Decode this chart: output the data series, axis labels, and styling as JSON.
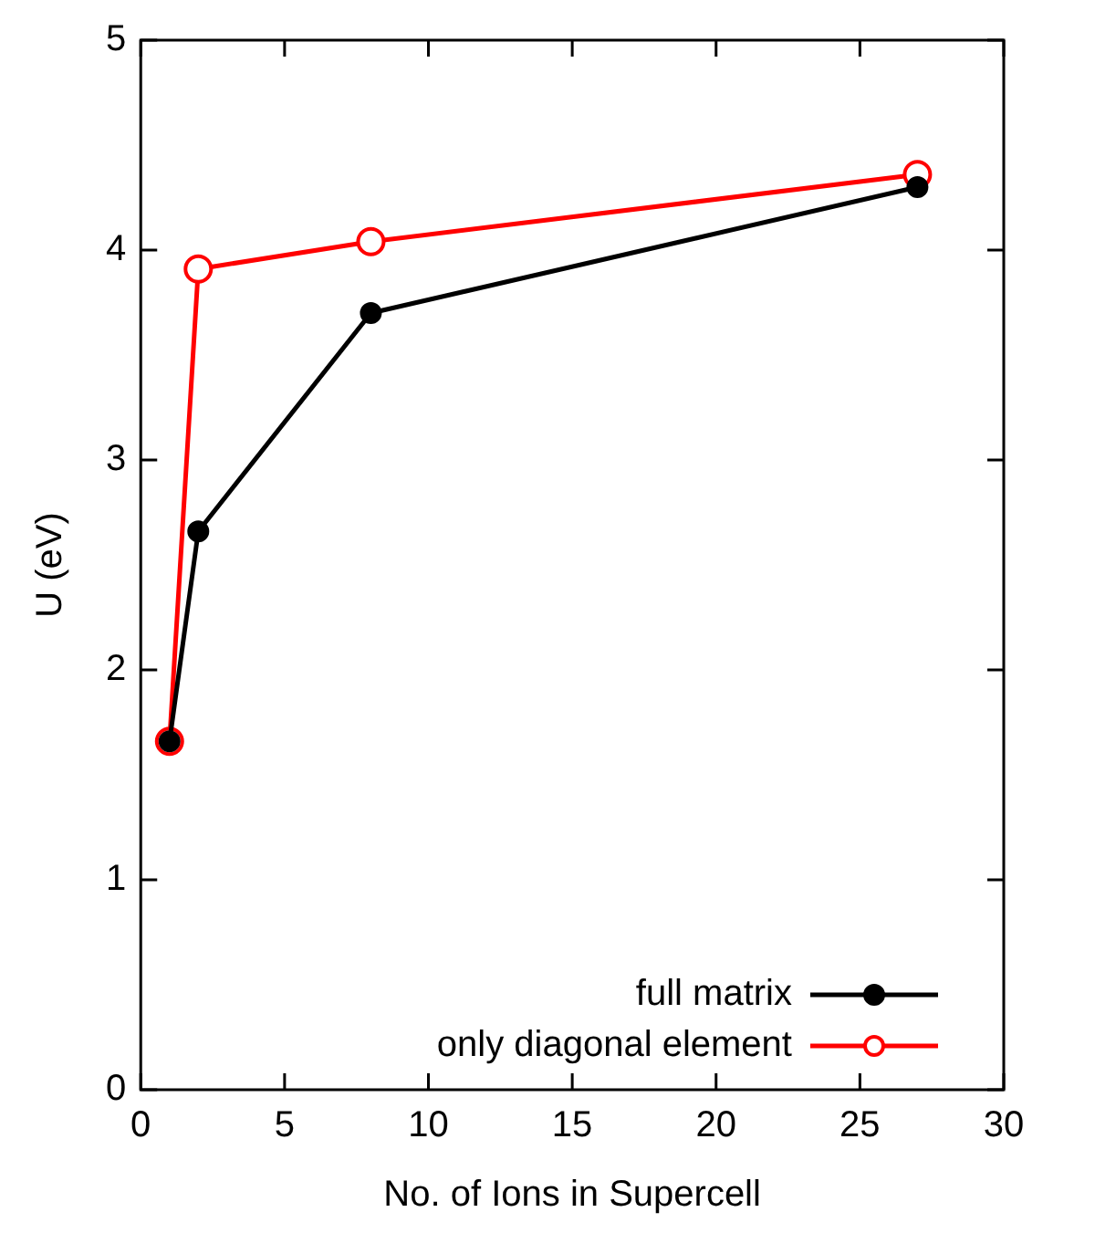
{
  "chart_data": {
    "type": "line",
    "xlabel": "No. of Ions in Supercell",
    "ylabel": "U (eV)",
    "xlim": [
      0,
      30
    ],
    "xticks": [
      0,
      5,
      10,
      15,
      20,
      25,
      30
    ],
    "ylim": [
      0,
      5
    ],
    "yticks": [
      0,
      1,
      2,
      3,
      4,
      5
    ],
    "grid": false,
    "legend": "bottom right",
    "marker": "circle",
    "line_style": "solid",
    "series": [
      {
        "name": "full matrix",
        "color": "#000000",
        "x": [
          1,
          2,
          8,
          27
        ],
        "values": [
          1.66,
          2.66,
          3.7,
          4.3
        ]
      },
      {
        "name": "only diagonal element",
        "color": "#ff0000",
        "x": [
          1,
          2,
          8,
          27
        ],
        "values": [
          1.66,
          3.91,
          4.04,
          4.36
        ]
      }
    ]
  }
}
